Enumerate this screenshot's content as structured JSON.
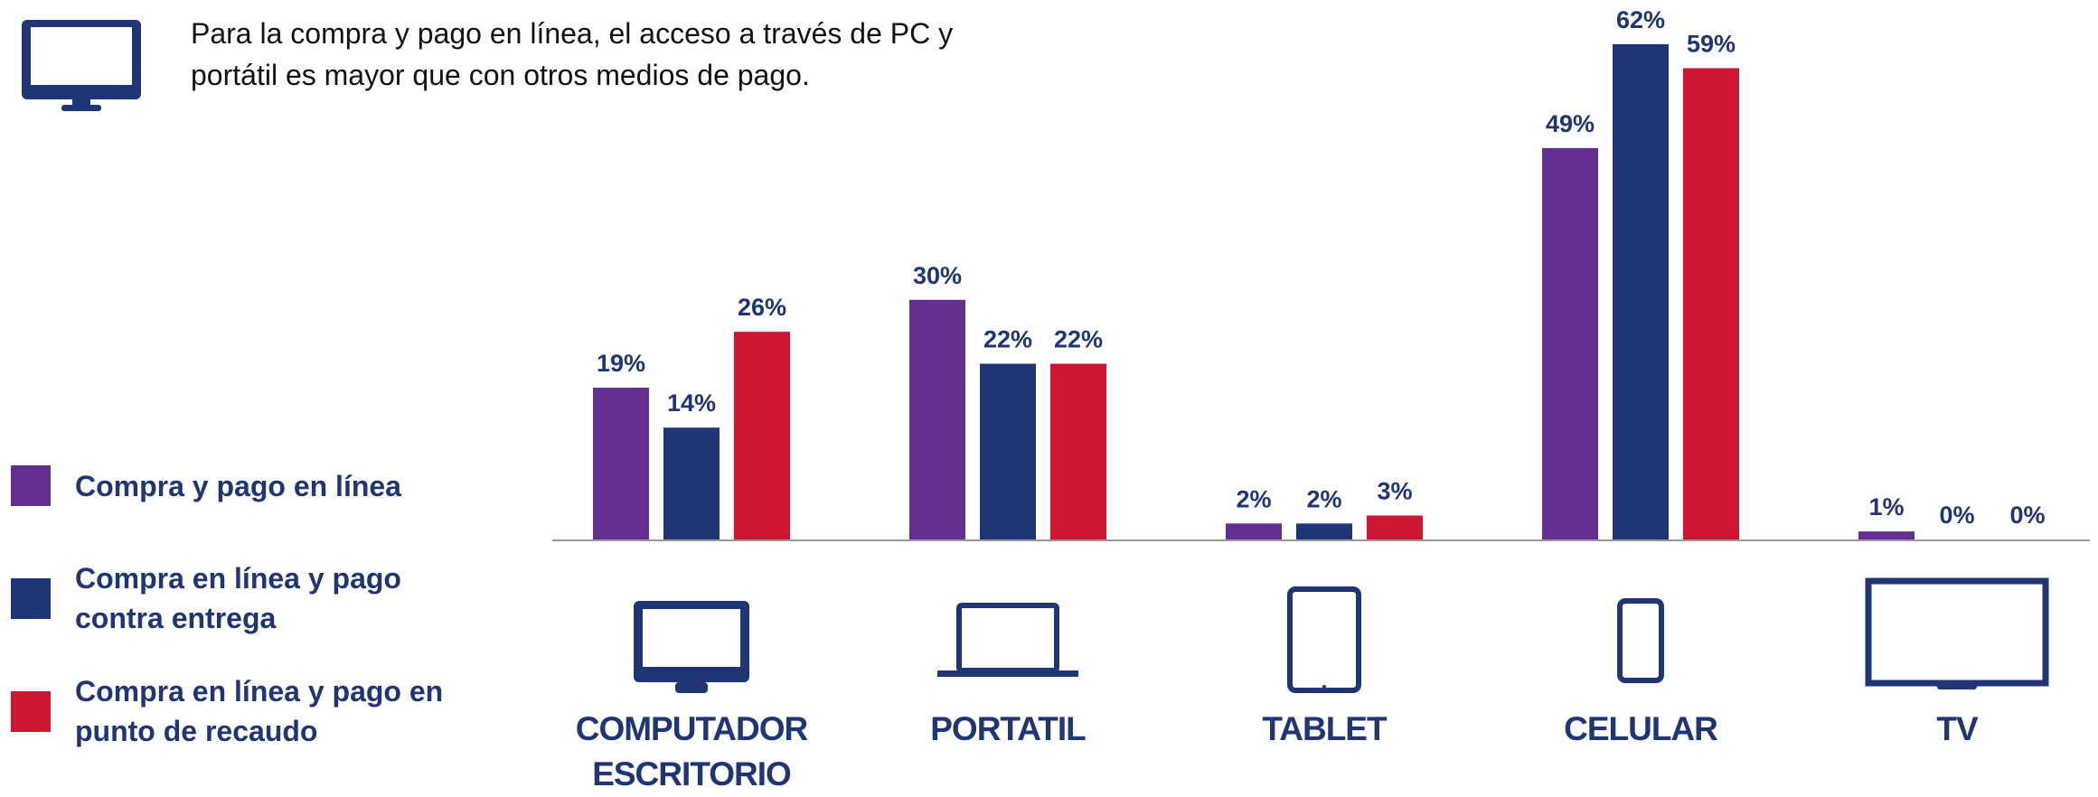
{
  "chart_data": {
    "type": "bar",
    "title": "Para la compra y pago en línea, el acceso a través de PC y portátil es mayor que con otros medios de pago.",
    "categories": [
      "COMPUTADOR ESCRITORIO",
      "PORTATIL",
      "TABLET",
      "CELULAR",
      "TV"
    ],
    "series": [
      {
        "name": "Compra y pago en línea",
        "color": "#662d91",
        "values": [
          19,
          30,
          2,
          49,
          1
        ],
        "value_labels": [
          "19%",
          "30%",
          "2%",
          "49%",
          "1%"
        ]
      },
      {
        "name": "Compra en línea y pago contra entrega",
        "color": "#1f3575",
        "values": [
          14,
          22,
          2,
          62,
          0
        ],
        "value_labels": [
          "14%",
          "22%",
          "2%",
          "62%",
          "0%"
        ]
      },
      {
        "name": "Compra en línea y pago en punto de recaudo",
        "color": "#d01533",
        "values": [
          26,
          22,
          3,
          59,
          0
        ],
        "value_labels": [
          "26%",
          "22%",
          "3%",
          "59%",
          "0%"
        ]
      }
    ]
  }
}
